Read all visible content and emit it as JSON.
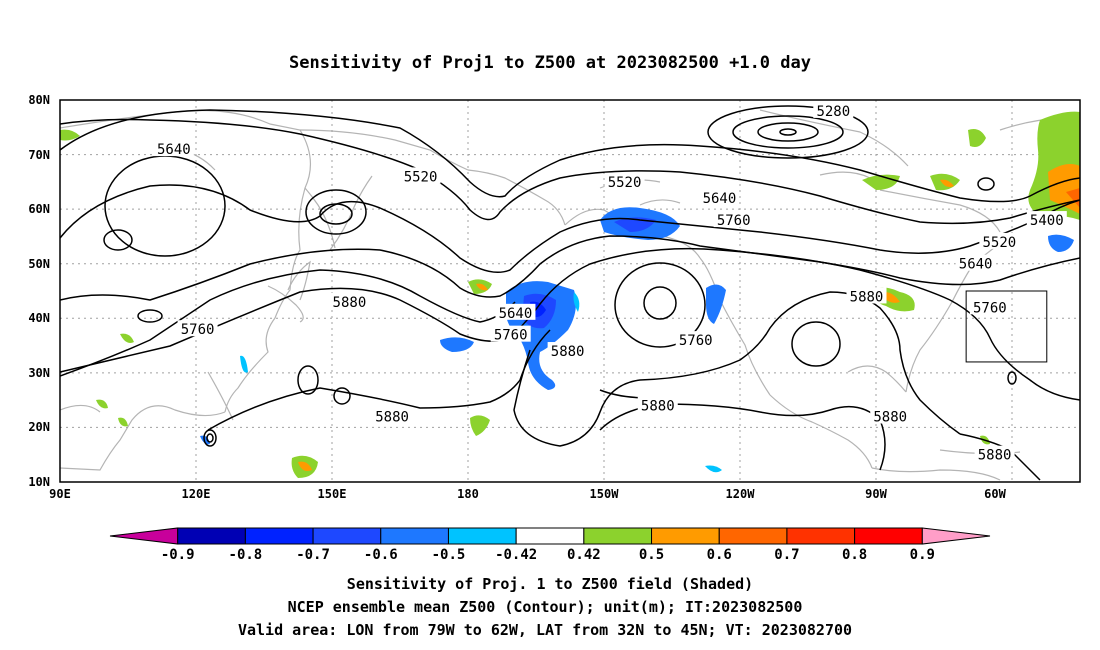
{
  "map": {
    "title": "Sensitivity of Proj1 to Z500 at 2023082500 +1.0 day",
    "lat_ticks": [
      "80N",
      "70N",
      "60N",
      "50N",
      "40N",
      "30N",
      "20N",
      "10N"
    ],
    "lon_ticks": [
      "90E",
      "120E",
      "150E",
      "180",
      "150W",
      "120W",
      "90W",
      "60W"
    ],
    "contour_labels": [
      {
        "text": "5280",
        "lon": 253,
        "lat": 78
      },
      {
        "text": "5640",
        "lon": 114,
        "lat": 71
      },
      {
        "text": "5520",
        "lon": 166,
        "lat": 66
      },
      {
        "text": "5520",
        "lon": 209,
        "lat": 65
      },
      {
        "text": "5640",
        "lon": 229,
        "lat": 62
      },
      {
        "text": "5760",
        "lon": 232,
        "lat": 58
      },
      {
        "text": "5400",
        "lon": 298,
        "lat": 58
      },
      {
        "text": "5520",
        "lon": 288,
        "lat": 54
      },
      {
        "text": "5640",
        "lon": 283,
        "lat": 50
      },
      {
        "text": "5880",
        "lon": 151,
        "lat": 43
      },
      {
        "text": "5640",
        "lon": 186,
        "lat": 41
      },
      {
        "text": "5880",
        "lon": 260,
        "lat": 44
      },
      {
        "text": "5760",
        "lon": 286,
        "lat": 42
      },
      {
        "text": "5760",
        "lon": 119,
        "lat": 38
      },
      {
        "text": "5760",
        "lon": 185,
        "lat": 37
      },
      {
        "text": "5760",
        "lon": 224,
        "lat": 36
      },
      {
        "text": "5880",
        "lon": 197,
        "lat": 34
      },
      {
        "text": "5880",
        "lon": 216,
        "lat": 24
      },
      {
        "text": "5880",
        "lon": 265,
        "lat": 22
      },
      {
        "text": "5880",
        "lon": 160,
        "lat": 22
      },
      {
        "text": "5880",
        "lon": 287,
        "lat": 15
      }
    ],
    "valid_area": {
      "lon_west": -79,
      "lon_east": -62,
      "lat_south": 32,
      "lat_north": 45
    }
  },
  "colorbar": {
    "labels": [
      "-0.9",
      "-0.8",
      "-0.7",
      "-0.6",
      "-0.5",
      "-0.42",
      "0.42",
      "0.5",
      "0.6",
      "0.7",
      "0.8",
      "0.9"
    ],
    "colors": [
      "#c8009b",
      "#0000b4",
      "#0022ff",
      "#1e48ff",
      "#1e78ff",
      "#00c3ff",
      "#ffffff",
      "#8cd22d",
      "#ff9b00",
      "#ff6600",
      "#ff3200",
      "#ff0000",
      "#ff9ec8"
    ]
  },
  "caption": {
    "line1": "Sensitivity of Proj. 1 to Z500 field (Shaded)",
    "line2": "NCEP ensemble mean Z500 (Contour); unit(m); IT:2023082500",
    "line3": "Valid area: LON from 79W to 62W, LAT from 32N to 45N; VT: 2023082700"
  }
}
